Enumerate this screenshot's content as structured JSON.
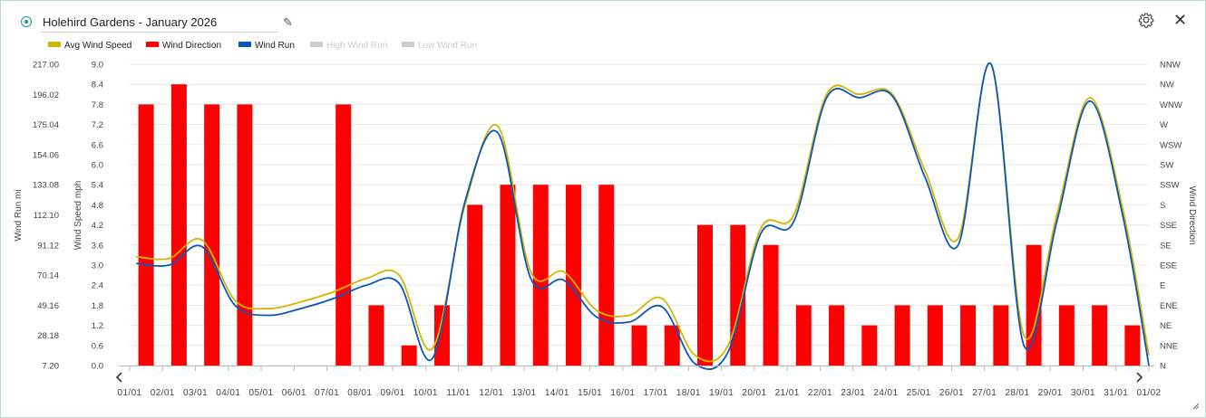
{
  "header": {
    "title": "Holehird Gardens - January 2026",
    "edit_icon": "pencil-icon",
    "settings_icon": "gear-icon",
    "close_icon": "close-icon",
    "close_glyph": "✕",
    "edit_glyph": "✎"
  },
  "colors": {
    "avg_wind_speed": "#d4b500",
    "wind_direction": "#ff0000",
    "wind_run": "#0b57b8",
    "inactive": "#cccccc",
    "accent": "#1a9a7c"
  },
  "chart_data": {
    "type": "bar",
    "title": "",
    "legend": [
      {
        "name": "Avg Wind Speed",
        "color": "#d4b500",
        "active": true
      },
      {
        "name": "Wind Direction",
        "color": "#ff0000",
        "active": true
      },
      {
        "name": "Wind Run",
        "color": "#0b57b8",
        "active": true
      },
      {
        "name": "High Wind Run",
        "color": "#cccccc",
        "active": false
      },
      {
        "name": "Low Wind Run",
        "color": "#cccccc",
        "active": false
      }
    ],
    "legend_position": "top-left",
    "grid": true,
    "categories": [
      "01/01",
      "02/01",
      "03/01",
      "04/01",
      "05/01",
      "06/01",
      "07/01",
      "08/01",
      "09/01",
      "10/01",
      "11/01",
      "12/01",
      "13/01",
      "14/01",
      "15/01",
      "16/01",
      "17/01",
      "18/01",
      "19/01",
      "20/01",
      "21/01",
      "22/01",
      "23/01",
      "24/01",
      "25/01",
      "26/01",
      "27/01",
      "28/01",
      "29/01",
      "30/01",
      "31/01",
      "01/02"
    ],
    "axes": {
      "wind_run": {
        "label": "Wind Run mi",
        "ticks": [
          "217.00",
          "196.02",
          "175.04",
          "154.06",
          "133.08",
          "112.10",
          "91.12",
          "70.14",
          "49.16",
          "28.18",
          "7.20"
        ],
        "range": [
          7.2,
          217.0
        ]
      },
      "wind_speed": {
        "label": "Wind Speed mph",
        "ticks": [
          "9.0",
          "8.4",
          "7.8",
          "7.2",
          "6.6",
          "6.0",
          "5.4",
          "4.8",
          "4.2",
          "3.6",
          "3.0",
          "2.4",
          "1.8",
          "1.2",
          "0.6",
          "0.0"
        ],
        "range": [
          0,
          9.0
        ]
      },
      "wind_direction": {
        "label": "Wind Direction",
        "ticks": [
          "NNW",
          "NW",
          "WNW",
          "W",
          "WSW",
          "SW",
          "SSW",
          "S",
          "SSE",
          "SE",
          "ESE",
          "E",
          "ENE",
          "NE",
          "NNE",
          "N"
        ]
      }
    },
    "series": [
      {
        "name": "Wind Direction",
        "kind": "bar",
        "axis": "wind_direction",
        "values": [
          "WNW",
          "NW",
          "WNW",
          "WNW",
          null,
          null,
          "WNW",
          "ENE",
          "NNE",
          "ENE",
          "S",
          "SSW",
          "SSW",
          "SSW",
          "SSW",
          "NE",
          "NE",
          "SSE",
          "SSE",
          "SE",
          "ENE",
          "ENE",
          "NE",
          "ENE",
          "ENE",
          "ENE",
          "ENE",
          "SE",
          "ENE",
          "ENE",
          "NE",
          null
        ]
      },
      {
        "name": "Avg Wind Speed",
        "kind": "line",
        "axis": "wind_speed",
        "values": [
          3.25,
          3.2,
          3.75,
          1.95,
          1.7,
          1.9,
          2.2,
          2.6,
          2.7,
          0.5,
          4.8,
          7.15,
          2.8,
          2.8,
          1.65,
          1.5,
          2.0,
          0.3,
          0.6,
          4.1,
          4.5,
          8.1,
          8.1,
          8.1,
          5.8,
          3.8,
          9.0,
          0.9,
          4.5,
          8.0,
          4.7,
          0.3
        ]
      },
      {
        "name": "Wind Run",
        "kind": "line",
        "axis": "wind_speed",
        "values": [
          3.05,
          3.0,
          3.55,
          1.8,
          1.5,
          1.7,
          2.0,
          2.4,
          2.45,
          0.2,
          4.9,
          6.95,
          2.6,
          2.55,
          1.45,
          1.3,
          1.75,
          0.05,
          0.4,
          3.95,
          4.3,
          8.0,
          8.0,
          8.05,
          5.6,
          3.6,
          9.0,
          0.6,
          4.3,
          7.9,
          4.5,
          0.0
        ]
      }
    ]
  }
}
